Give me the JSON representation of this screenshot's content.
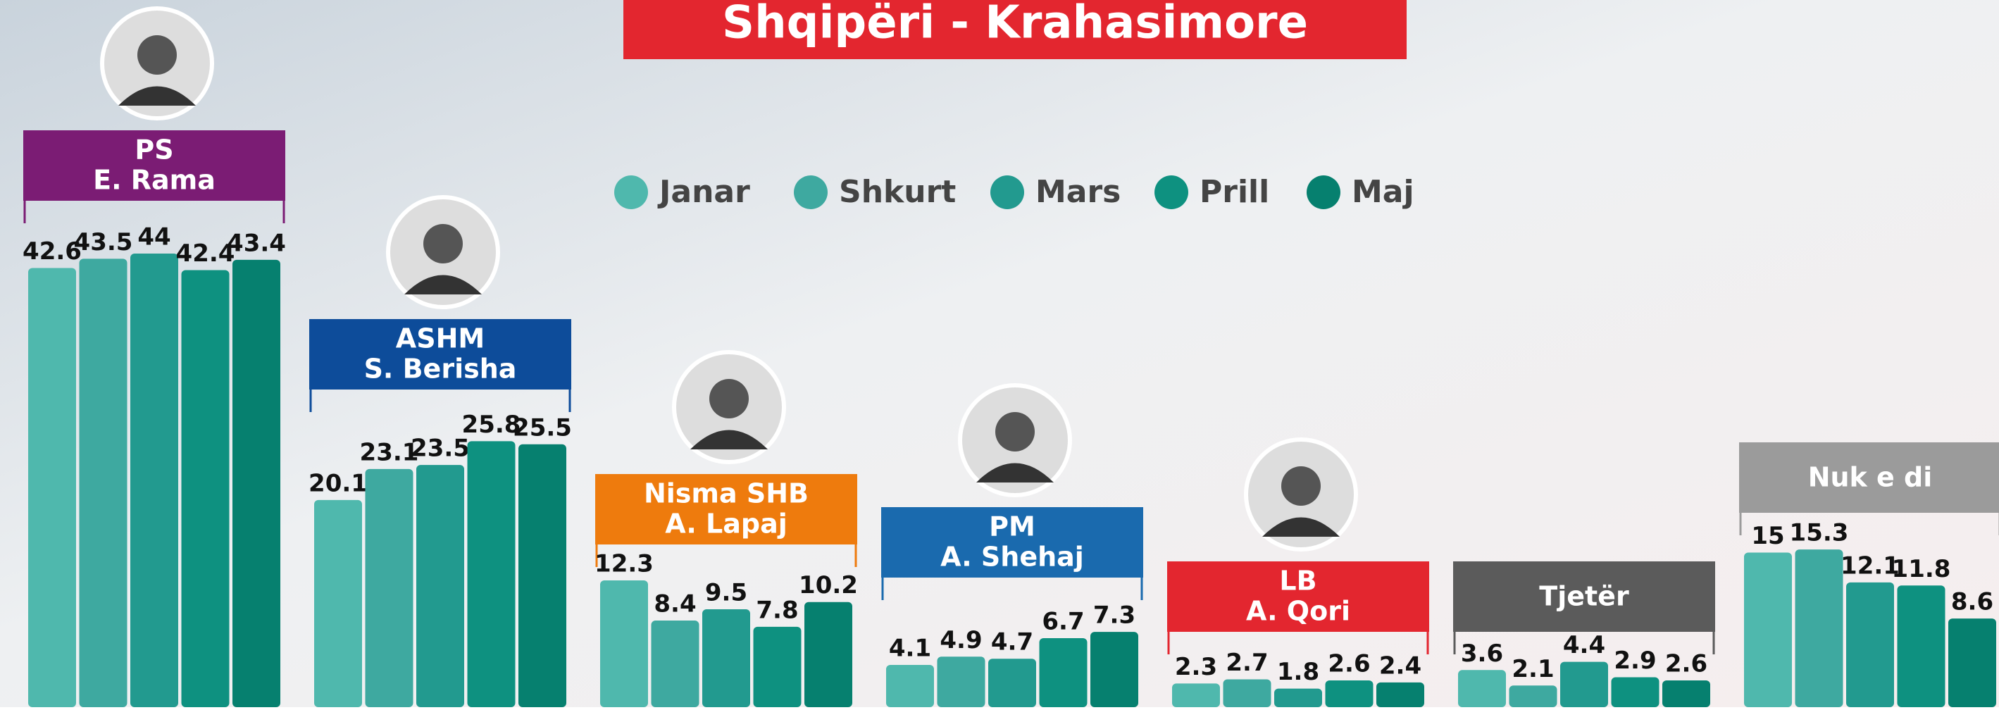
{
  "chart_data": {
    "type": "bar",
    "title": "Shqipëri - Krahasimore",
    "categories": [
      "PS",
      "ASHM",
      "Nisma SHB",
      "PM",
      "LB",
      "Tjetër",
      "Nuk e di"
    ],
    "leaders": [
      "E. Rama",
      "S. Berisha",
      "A. Lapaj",
      "A. Shehaj",
      "A. Qori",
      null,
      null
    ],
    "category_colors": [
      "#7b1c74",
      "#0d4c9a",
      "#ee7b0d",
      "#1a6aae",
      "#e3262f",
      "#5b5b5b",
      "#9b9b9b"
    ],
    "series": [
      {
        "name": "Janar",
        "color": "#4fb8ad",
        "values": [
          42.6,
          20.1,
          12.3,
          4.1,
          2.3,
          3.6,
          15
        ]
      },
      {
        "name": "Shkurt",
        "color": "#3ea9a0",
        "values": [
          43.5,
          23.1,
          8.4,
          4.9,
          2.7,
          2.1,
          15.3
        ]
      },
      {
        "name": "Mars",
        "color": "#229a8f",
        "values": [
          44,
          23.5,
          9.5,
          4.7,
          1.8,
          4.4,
          12.1
        ]
      },
      {
        "name": "Prill",
        "color": "#0e9180",
        "values": [
          42.4,
          25.8,
          7.8,
          6.7,
          2.6,
          2.9,
          11.8
        ]
      },
      {
        "name": "Maj",
        "color": "#06806f",
        "values": [
          43.4,
          25.5,
          10.2,
          7.3,
          2.4,
          2.6,
          8.6
        ]
      }
    ],
    "ylim": [
      0,
      68.6
    ]
  }
}
